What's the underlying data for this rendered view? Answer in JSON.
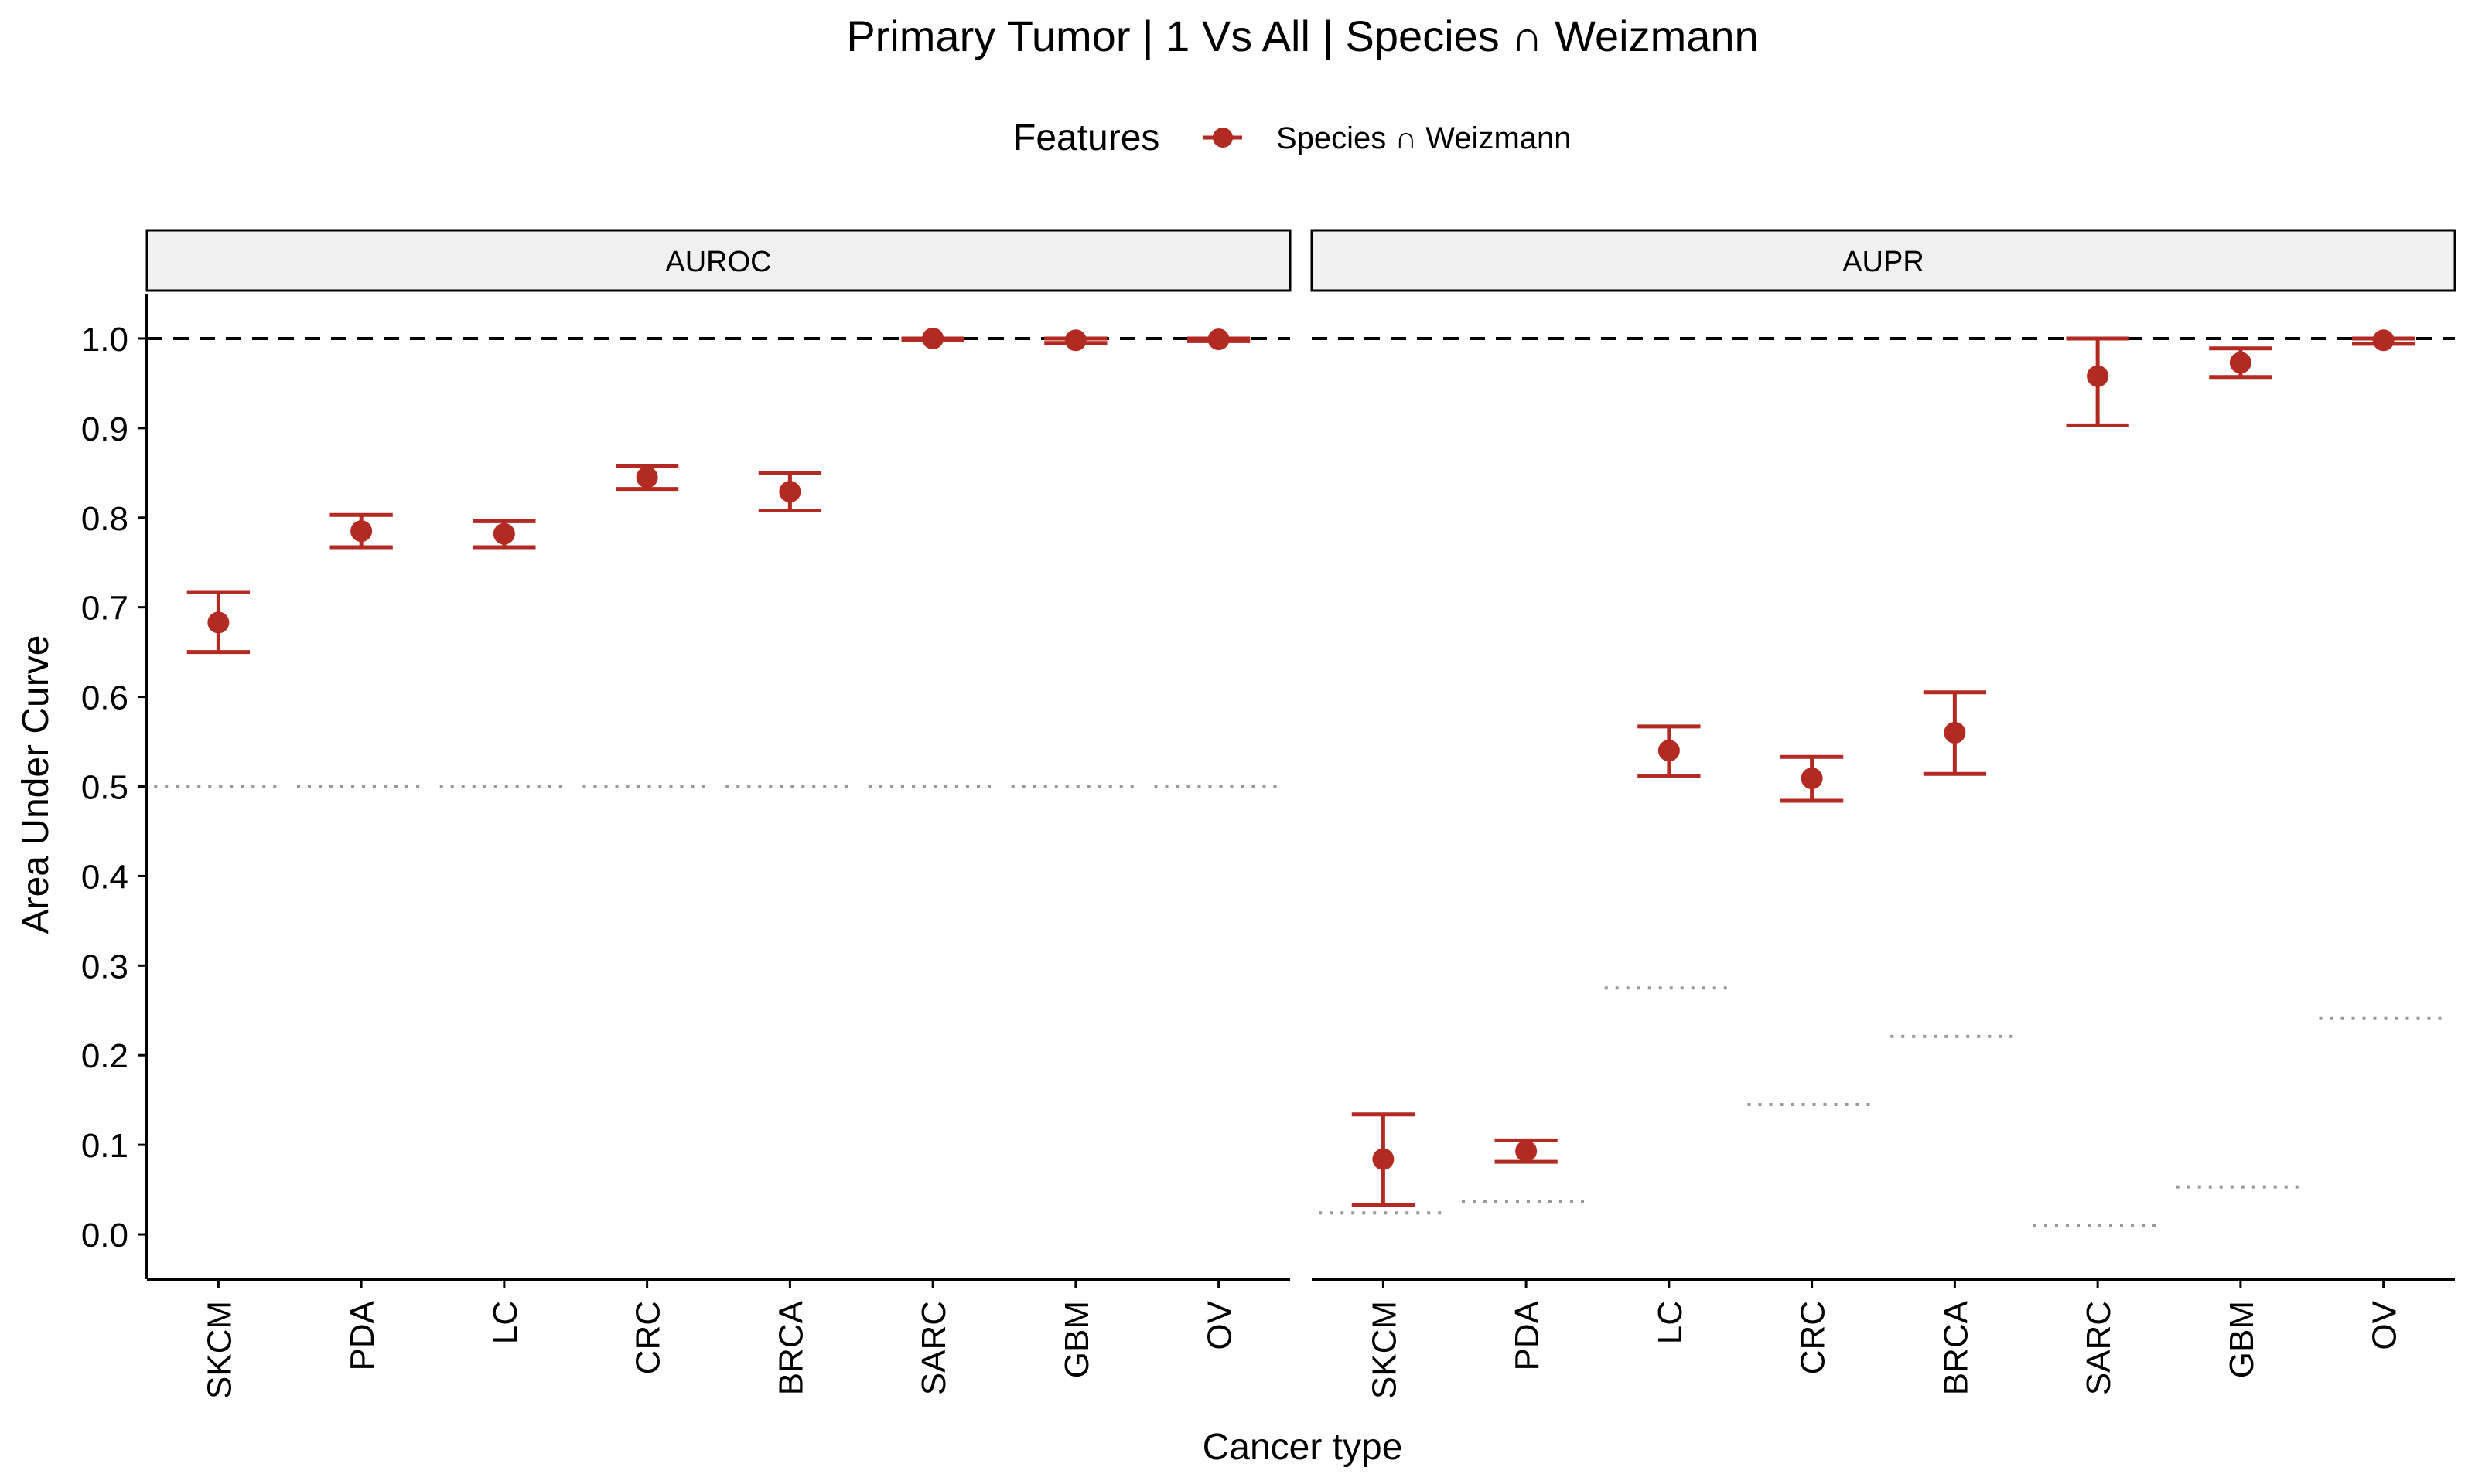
{
  "chart_data": {
    "type": "scatter",
    "title": "Primary Tumor | 1 Vs All | Species ∩ Weizmann",
    "xlabel": "Cancer type",
    "ylabel": "Area Under Curve",
    "legend": {
      "title": "Features",
      "position": "top",
      "entries": [
        "Species ∩ Weizmann"
      ]
    },
    "series_color": "#B22A22",
    "reference_color": "#999999",
    "categories": [
      "SKCM",
      "PDA",
      "LC",
      "CRC",
      "BRCA",
      "SARC",
      "GBM",
      "OV"
    ],
    "ylim": [
      -0.05,
      1.05
    ],
    "yticks": [
      "0.0",
      "0.1",
      "0.2",
      "0.3",
      "0.4",
      "0.5",
      "0.6",
      "0.7",
      "0.8",
      "0.9",
      "1.0"
    ],
    "grid": false,
    "hline": 1.0,
    "panels": [
      {
        "label": "AUROC",
        "series": [
          {
            "name": "Species ∩ Weizmann",
            "values": [
              0.683,
              0.785,
              0.782,
              0.845,
              0.829,
              1.0,
              0.998,
              0.999
            ],
            "lower": [
              0.65,
              0.767,
              0.767,
              0.832,
              0.808,
              0.998,
              0.995,
              0.997
            ],
            "upper": [
              0.717,
              0.803,
              0.796,
              0.858,
              0.85,
              1.0,
              1.0,
              1.0
            ]
          }
        ],
        "reference": [
          0.5,
          0.5,
          0.5,
          0.5,
          0.5,
          0.5,
          0.5,
          0.5
        ]
      },
      {
        "label": "AUPR",
        "series": [
          {
            "name": "Species ∩ Weizmann",
            "values": [
              0.084,
              0.093,
              0.54,
              0.509,
              0.56,
              0.958,
              0.973,
              0.998
            ],
            "lower": [
              0.033,
              0.081,
              0.512,
              0.484,
              0.514,
              0.903,
              0.957,
              0.994
            ],
            "upper": [
              0.134,
              0.105,
              0.567,
              0.533,
              0.605,
              1.0,
              0.989,
              1.0
            ]
          }
        ],
        "reference": [
          0.024,
          0.037,
          0.275,
          0.145,
          0.221,
          0.01,
          0.053,
          0.241
        ]
      }
    ]
  }
}
